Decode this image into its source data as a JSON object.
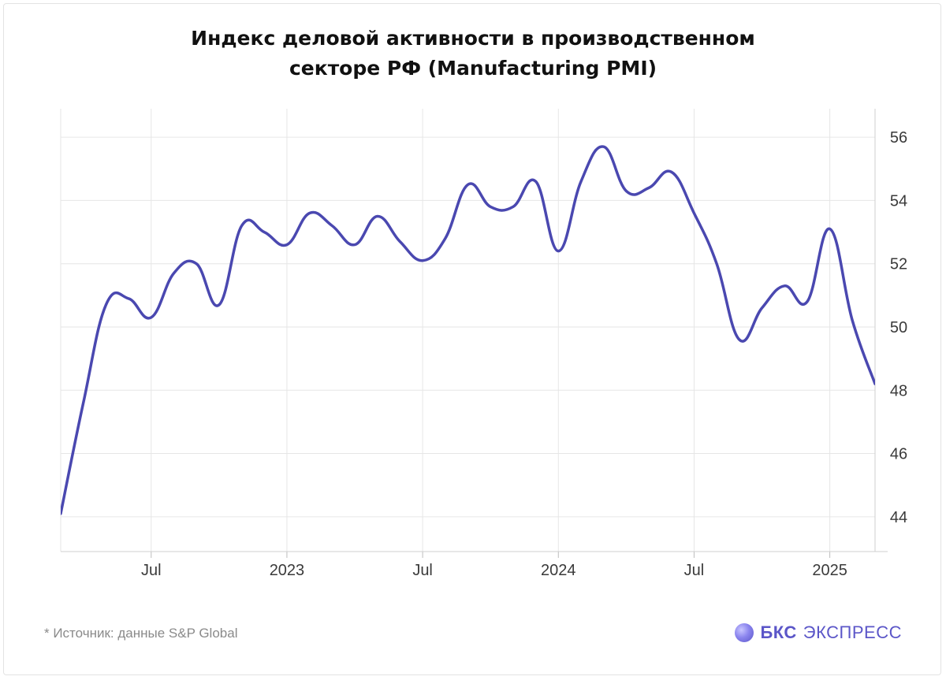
{
  "title_line1": "Индекс деловой активности в производственном",
  "title_line2": "секторе РФ (Manufacturing PMI)",
  "footer": {
    "source": "* Источник: данные S&P Global",
    "brand_bold": "БКС",
    "brand_rest": "ЭКСПРЕСС"
  },
  "colors": {
    "line": "#4a48b0",
    "grid": "#e6e6e6",
    "brand": "#5b56c8"
  },
  "chart_data": {
    "type": "line",
    "title": "Индекс деловой активности в производственном секторе РФ (Manufacturing PMI)",
    "x_ticks": [
      {
        "x": 3,
        "label": "Jul"
      },
      {
        "x": 9,
        "label": "2023"
      },
      {
        "x": 15,
        "label": "Jul"
      },
      {
        "x": 21,
        "label": "2024"
      },
      {
        "x": 27,
        "label": "Jul"
      },
      {
        "x": 33,
        "label": "2025"
      }
    ],
    "y_ticks": [
      44,
      46,
      48,
      50,
      52,
      54,
      56
    ],
    "xlim": [
      -1,
      35
    ],
    "ylim": [
      42.9,
      56.9
    ],
    "y_axis_position": "right",
    "grid": true,
    "series": [
      {
        "x": [
          -1,
          0,
          1,
          2,
          3,
          4,
          5,
          6,
          7,
          8,
          9,
          10,
          11,
          12,
          13,
          14,
          15,
          16,
          17,
          18,
          19,
          20,
          21,
          22,
          23,
          24,
          25,
          26,
          27,
          28,
          29,
          30,
          31,
          32,
          33,
          34,
          35
        ],
        "values": [
          44.1,
          47.6,
          50.7,
          50.9,
          50.3,
          51.7,
          52.0,
          50.7,
          53.2,
          53.0,
          52.6,
          53.6,
          53.2,
          52.6,
          53.5,
          52.7,
          52.1,
          52.8,
          54.5,
          53.8,
          53.8,
          54.6,
          52.4,
          54.6,
          55.7,
          54.3,
          54.4,
          54.9,
          53.6,
          52.0,
          49.6,
          50.6,
          51.3,
          50.8,
          53.1,
          50.2,
          48.2
        ]
      }
    ]
  }
}
